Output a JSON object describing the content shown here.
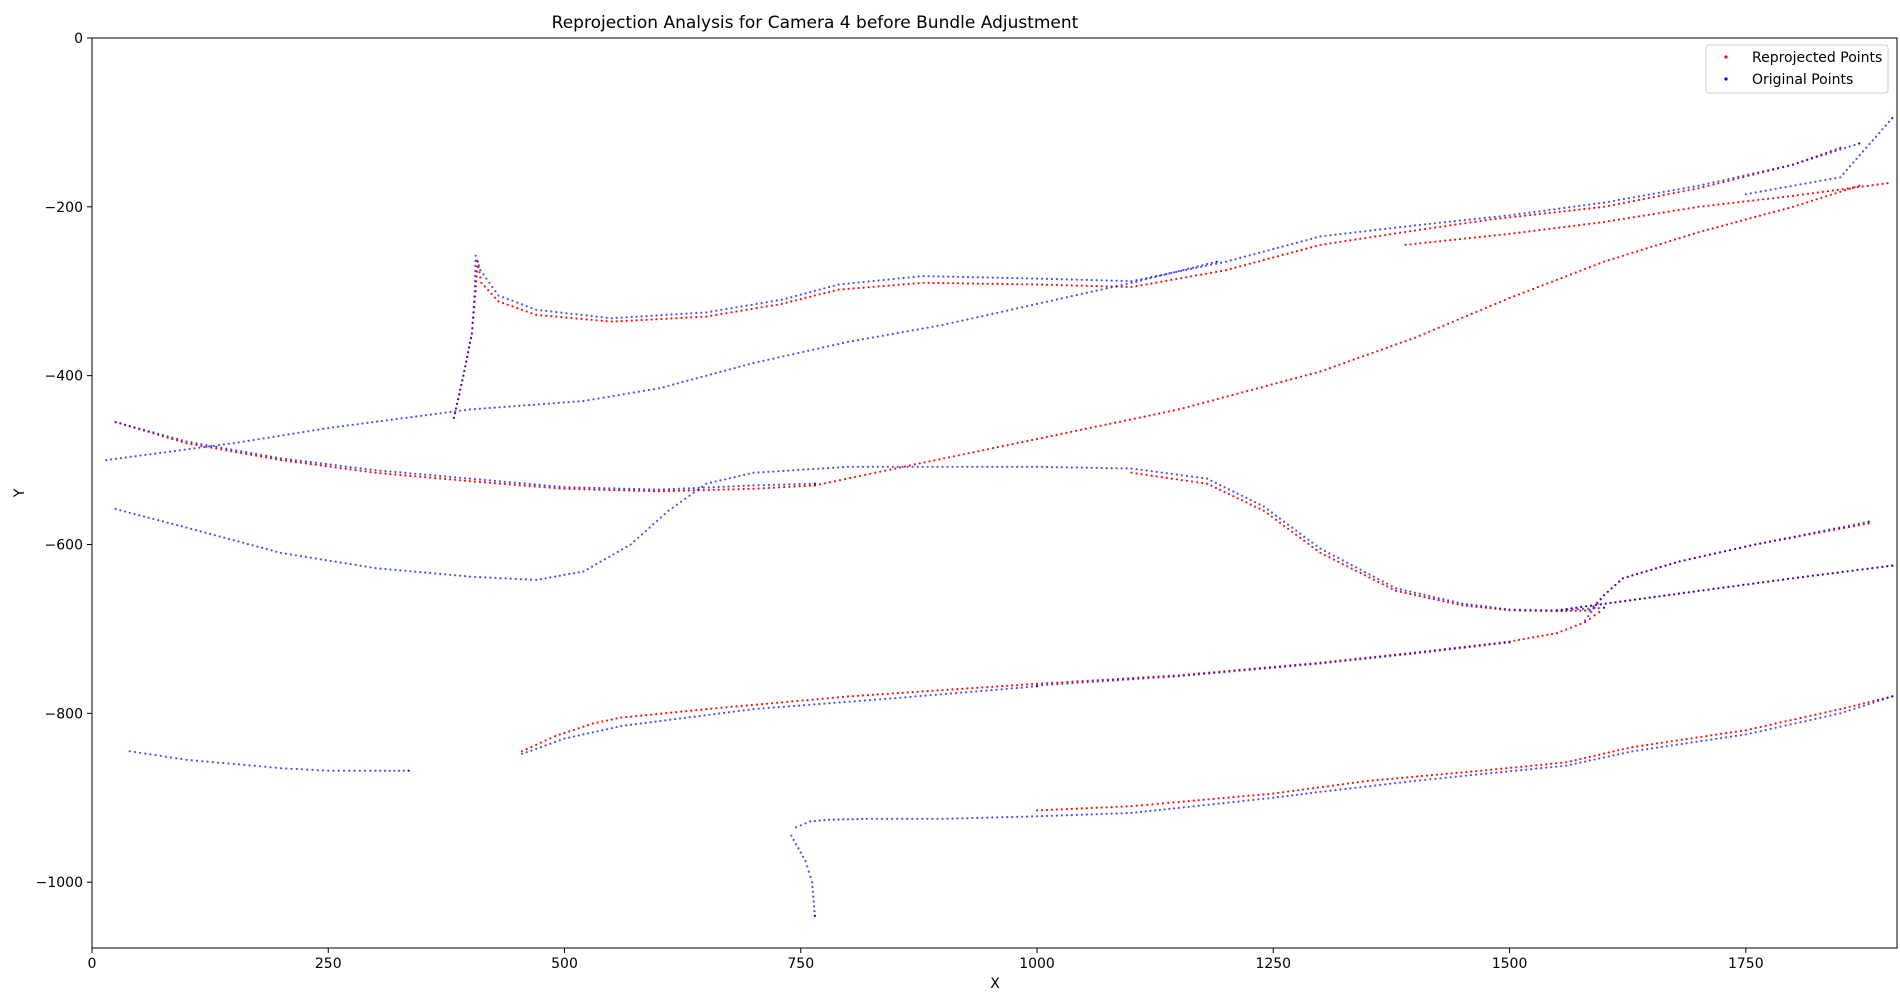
{
  "chart_data": {
    "type": "scatter",
    "title": "Reprojection Analysis for Camera 4 before Bundle Adjustment",
    "xlabel": "X",
    "ylabel": "Y",
    "xlim": [
      0,
      1910
    ],
    "ylim": [
      -1078,
      0
    ],
    "xticks": [
      0,
      250,
      500,
      750,
      1000,
      1250,
      1500,
      1750
    ],
    "yticks": [
      0,
      -200,
      -400,
      -600,
      -800,
      -1000
    ],
    "xtick_labels": [
      "0",
      "250",
      "500",
      "750",
      "1000",
      "1250",
      "1500",
      "1750"
    ],
    "ytick_labels": [
      "0",
      "−200",
      "−400",
      "−600",
      "−800",
      "−1000"
    ],
    "grid": false,
    "legend_position": "top-right",
    "series": [
      {
        "name": "Reprojected Points",
        "color": "#ff0000",
        "curves": [
          [
            [
              383,
              -450
            ],
            [
              393,
              -400
            ],
            [
              402,
              -350
            ],
            [
              406,
              -300
            ],
            [
              408,
              -265
            ],
            [
              412,
              -290
            ],
            [
              430,
              -312
            ],
            [
              470,
              -328
            ],
            [
              550,
              -336
            ],
            [
              650,
              -330
            ],
            [
              730,
              -315
            ],
            [
              790,
              -298
            ],
            [
              880,
              -290
            ],
            [
              1000,
              -292
            ],
            [
              1100,
              -295
            ],
            [
              1200,
              -275
            ],
            [
              1300,
              -245
            ],
            [
              1400,
              -228
            ],
            [
              1480,
              -215
            ],
            [
              1600,
              -200
            ],
            [
              1700,
              -178
            ],
            [
              1800,
              -150
            ],
            [
              1850,
              -130
            ]
          ],
          [
            [
              1390,
              -245
            ],
            [
              1500,
              -232
            ],
            [
              1600,
              -218
            ],
            [
              1700,
              -200
            ],
            [
              1800,
              -187
            ],
            [
              1900,
              -172
            ]
          ],
          [
            [
              25,
              -455
            ],
            [
              100,
              -480
            ],
            [
              200,
              -500
            ],
            [
              300,
              -515
            ],
            [
              400,
              -525
            ],
            [
              500,
              -534
            ],
            [
              600,
              -537
            ],
            [
              700,
              -534
            ],
            [
              765,
              -530
            ]
          ],
          [
            [
              765,
              -530
            ],
            [
              850,
              -510
            ],
            [
              1000,
              -475
            ],
            [
              1150,
              -440
            ],
            [
              1300,
              -395
            ],
            [
              1400,
              -355
            ],
            [
              1500,
              -308
            ],
            [
              1600,
              -265
            ],
            [
              1700,
              -230
            ],
            [
              1800,
              -200
            ],
            [
              1870,
              -175
            ]
          ],
          [
            [
              1100,
              -515
            ],
            [
              1180,
              -528
            ],
            [
              1240,
              -560
            ],
            [
              1300,
              -610
            ],
            [
              1380,
              -655
            ],
            [
              1450,
              -672
            ],
            [
              1500,
              -678
            ],
            [
              1550,
              -679
            ],
            [
              1585,
              -678
            ]
          ],
          [
            [
              1585,
              -678
            ],
            [
              1600,
              -660
            ],
            [
              1620,
              -640
            ],
            [
              1680,
              -620
            ],
            [
              1760,
              -600
            ],
            [
              1880,
              -575
            ]
          ],
          [
            [
              1550,
              -678
            ],
            [
              1700,
              -655
            ],
            [
              1800,
              -640
            ],
            [
              1905,
              -625
            ]
          ],
          [
            [
              455,
              -845
            ],
            [
              490,
              -827
            ],
            [
              530,
              -812
            ],
            [
              560,
              -805
            ],
            [
              650,
              -795
            ],
            [
              800,
              -780
            ],
            [
              1000,
              -765
            ],
            [
              1150,
              -755
            ],
            [
              1300,
              -740
            ],
            [
              1400,
              -728
            ],
            [
              1500,
              -715
            ],
            [
              1550,
              -705
            ],
            [
              1580,
              -692
            ],
            [
              1595,
              -680
            ]
          ],
          [
            [
              1000,
              -915
            ],
            [
              1100,
              -910
            ],
            [
              1150,
              -905
            ],
            [
              1250,
              -895
            ],
            [
              1350,
              -880
            ],
            [
              1470,
              -868
            ],
            [
              1560,
              -858
            ],
            [
              1630,
              -840
            ],
            [
              1750,
              -820
            ],
            [
              1850,
              -795
            ],
            [
              1905,
              -780
            ]
          ]
        ]
      },
      {
        "name": "Original Points",
        "color": "#0000ff",
        "curves": [
          [
            [
              383,
              -450
            ],
            [
              393,
              -400
            ],
            [
              402,
              -350
            ],
            [
              405,
              -300
            ],
            [
              406,
              -258
            ],
            [
              411,
              -275
            ],
            [
              430,
              -305
            ],
            [
              470,
              -322
            ],
            [
              550,
              -332
            ],
            [
              650,
              -325
            ],
            [
              730,
              -310
            ],
            [
              790,
              -292
            ],
            [
              880,
              -282
            ],
            [
              1000,
              -285
            ],
            [
              1100,
              -288
            ],
            [
              1200,
              -265
            ],
            [
              1300,
              -235
            ],
            [
              1400,
              -222
            ],
            [
              1500,
              -210
            ],
            [
              1600,
              -195
            ],
            [
              1700,
              -175
            ],
            [
              1800,
              -150
            ],
            [
              1870,
              -125
            ]
          ],
          [
            [
              1750,
              -185
            ],
            [
              1850,
              -165
            ],
            [
              1905,
              -95
            ]
          ],
          [
            [
              15,
              -500
            ],
            [
              150,
              -480
            ],
            [
              250,
              -462
            ],
            [
              400,
              -440
            ],
            [
              520,
              -430
            ],
            [
              600,
              -415
            ],
            [
              700,
              -385
            ],
            [
              800,
              -360
            ],
            [
              900,
              -340
            ],
            [
              1000,
              -315
            ],
            [
              1100,
              -290
            ],
            [
              1190,
              -265
            ]
          ],
          [
            [
              25,
              -455
            ],
            [
              100,
              -478
            ],
            [
              200,
              -498
            ],
            [
              300,
              -512
            ],
            [
              400,
              -522
            ],
            [
              500,
              -532
            ],
            [
              600,
              -535
            ],
            [
              700,
              -530
            ],
            [
              765,
              -528
            ]
          ],
          [
            [
              25,
              -558
            ],
            [
              100,
              -580
            ],
            [
              200,
              -610
            ],
            [
              300,
              -628
            ],
            [
              400,
              -638
            ],
            [
              470,
              -642
            ],
            [
              520,
              -632
            ],
            [
              570,
              -600
            ],
            [
              610,
              -560
            ],
            [
              650,
              -528
            ],
            [
              700,
              -515
            ],
            [
              800,
              -508
            ],
            [
              900,
              -508
            ],
            [
              1000,
              -508
            ],
            [
              1100,
              -510
            ],
            [
              1180,
              -522
            ],
            [
              1240,
              -555
            ],
            [
              1300,
              -605
            ],
            [
              1380,
              -652
            ],
            [
              1450,
              -670
            ],
            [
              1500,
              -677
            ],
            [
              1550,
              -678
            ],
            [
              1600,
              -675
            ]
          ],
          [
            [
              1550,
              -678
            ],
            [
              1700,
              -655
            ],
            [
              1800,
              -640
            ],
            [
              1905,
              -625
            ]
          ],
          [
            [
              1580,
              -690
            ],
            [
              1600,
              -660
            ],
            [
              1620,
              -640
            ],
            [
              1680,
              -620
            ],
            [
              1760,
              -600
            ],
            [
              1880,
              -573
            ]
          ],
          [
            [
              1000,
              -767
            ],
            [
              1150,
              -756
            ],
            [
              1300,
              -741
            ],
            [
              1400,
              -729
            ],
            [
              1500,
              -716
            ]
          ],
          [
            [
              455,
              -848
            ],
            [
              500,
              -830
            ],
            [
              560,
              -815
            ],
            [
              700,
              -795
            ],
            [
              850,
              -782
            ],
            [
              1000,
              -768
            ]
          ],
          [
            [
              40,
              -845
            ],
            [
              100,
              -855
            ],
            [
              150,
              -860
            ],
            [
              200,
              -865
            ],
            [
              250,
              -868
            ],
            [
              300,
              -868
            ],
            [
              335,
              -868
            ]
          ],
          [
            [
              740,
              -945
            ],
            [
              745,
              -955
            ],
            [
              755,
              -975
            ],
            [
              762,
              -1000
            ],
            [
              765,
              -1040
            ]
          ],
          [
            [
              745,
              -935
            ],
            [
              760,
              -928
            ],
            [
              780,
              -926
            ],
            [
              820,
              -925
            ],
            [
              900,
              -925
            ],
            [
              1000,
              -922
            ],
            [
              1100,
              -918
            ],
            [
              1150,
              -912
            ],
            [
              1250,
              -900
            ],
            [
              1300,
              -893
            ],
            [
              1400,
              -880
            ],
            [
              1470,
              -872
            ],
            [
              1560,
              -862
            ],
            [
              1630,
              -845
            ],
            [
              1750,
              -825
            ],
            [
              1850,
              -800
            ],
            [
              1905,
              -780
            ]
          ]
        ]
      }
    ]
  }
}
